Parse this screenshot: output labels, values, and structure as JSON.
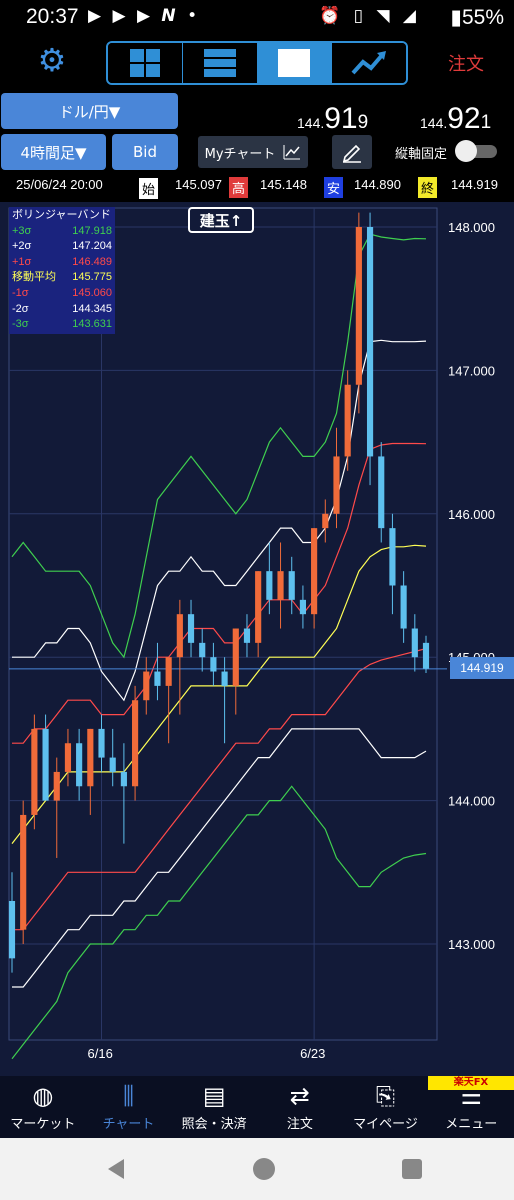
{
  "status_bar": {
    "time": "20:37",
    "battery": "55%"
  },
  "toolbar": {
    "settings_icon": "gear-icon",
    "layouts": [
      "quad-layout",
      "list-layout",
      "single-layout",
      "trend-layout"
    ],
    "active_layout": 2,
    "order_label": "注文"
  },
  "controls": {
    "pair": "ドル/円▼",
    "timeframe": "4時間足▼",
    "side": "Bid",
    "mychart_label": "Myチャート",
    "axis_lock_label": "縦軸固定",
    "axis_lock_on": false
  },
  "quotes": {
    "bid": {
      "prefix": "144.",
      "big": "91",
      "suffix": "9"
    },
    "ask": {
      "prefix": "144.",
      "big": "92",
      "suffix": "1"
    }
  },
  "ohlc": {
    "datetime": "25/06/24 20:00",
    "open_label": "始",
    "open": "145.097",
    "high_label": "高",
    "high": "145.148",
    "low_label": "安",
    "low": "144.890",
    "close_label": "終",
    "close": "144.919",
    "colors": {
      "open": "#000000",
      "high": "#e03b3b",
      "low": "#1f3fe0",
      "close": "#f2ea2a"
    }
  },
  "bollinger": {
    "title": "ボリンジャーバンド",
    "rows": [
      {
        "label": "+3σ",
        "value": "147.918",
        "color": "#3fcf4f"
      },
      {
        "label": "+2σ",
        "value": "147.204",
        "color": "#ffffff"
      },
      {
        "label": "+1σ",
        "value": "146.489",
        "color": "#ff4a4a"
      },
      {
        "label": "移動平均",
        "value": "145.775",
        "color": "#ffff55"
      },
      {
        "label": "-1σ",
        "value": "145.060",
        "color": "#ff4a4a"
      },
      {
        "label": "-2σ",
        "value": "144.345",
        "color": "#ffffff"
      },
      {
        "label": "-3σ",
        "value": "143.631",
        "color": "#3fcf4f"
      }
    ]
  },
  "position_button": "建玉↑",
  "chart_data": {
    "type": "candlestick",
    "y_ticks": [
      "148.000",
      "147.000",
      "146.000",
      "145.000",
      "144.000",
      "143.000"
    ],
    "ylim": [
      142.5,
      148.1
    ],
    "x_ticks": [
      "6/16",
      "6/23"
    ],
    "current_price": "144.919",
    "candles": [
      {
        "o": 143.3,
        "h": 143.5,
        "l": 142.8,
        "c": 142.9
      },
      {
        "o": 143.1,
        "h": 144.0,
        "l": 143.0,
        "c": 143.9
      },
      {
        "o": 143.9,
        "h": 144.6,
        "l": 143.8,
        "c": 144.5
      },
      {
        "o": 144.5,
        "h": 144.6,
        "l": 144.0,
        "c": 144.0
      },
      {
        "o": 144.0,
        "h": 144.3,
        "l": 143.6,
        "c": 144.2
      },
      {
        "o": 144.2,
        "h": 144.5,
        "l": 144.1,
        "c": 144.4
      },
      {
        "o": 144.4,
        "h": 144.5,
        "l": 144.0,
        "c": 144.1
      },
      {
        "o": 144.1,
        "h": 144.5,
        "l": 143.9,
        "c": 144.5
      },
      {
        "o": 144.5,
        "h": 144.6,
        "l": 144.2,
        "c": 144.3
      },
      {
        "o": 144.3,
        "h": 144.5,
        "l": 144.1,
        "c": 144.2
      },
      {
        "o": 144.2,
        "h": 144.4,
        "l": 143.7,
        "c": 144.1
      },
      {
        "o": 144.1,
        "h": 144.8,
        "l": 144.0,
        "c": 144.7
      },
      {
        "o": 144.7,
        "h": 145.0,
        "l": 144.6,
        "c": 144.9
      },
      {
        "o": 144.9,
        "h": 145.1,
        "l": 144.7,
        "c": 144.8
      },
      {
        "o": 144.8,
        "h": 145.0,
        "l": 144.4,
        "c": 145.0
      },
      {
        "o": 145.0,
        "h": 145.4,
        "l": 144.6,
        "c": 145.3
      },
      {
        "o": 145.3,
        "h": 145.4,
        "l": 145.0,
        "c": 145.1
      },
      {
        "o": 145.1,
        "h": 145.2,
        "l": 144.9,
        "c": 145.0
      },
      {
        "o": 145.0,
        "h": 145.1,
        "l": 144.8,
        "c": 144.9
      },
      {
        "o": 144.9,
        "h": 145.0,
        "l": 144.4,
        "c": 144.8
      },
      {
        "o": 144.8,
        "h": 145.2,
        "l": 144.6,
        "c": 145.2
      },
      {
        "o": 145.2,
        "h": 145.3,
        "l": 145.0,
        "c": 145.1
      },
      {
        "o": 145.1,
        "h": 145.6,
        "l": 145.0,
        "c": 145.6
      },
      {
        "o": 145.6,
        "h": 145.8,
        "l": 145.3,
        "c": 145.4
      },
      {
        "o": 145.4,
        "h": 145.8,
        "l": 145.2,
        "c": 145.6
      },
      {
        "o": 145.6,
        "h": 145.7,
        "l": 145.3,
        "c": 145.4
      },
      {
        "o": 145.4,
        "h": 145.5,
        "l": 145.2,
        "c": 145.3
      },
      {
        "o": 145.3,
        "h": 145.9,
        "l": 145.2,
        "c": 145.9
      },
      {
        "o": 145.9,
        "h": 146.1,
        "l": 145.8,
        "c": 146.0
      },
      {
        "o": 146.0,
        "h": 146.6,
        "l": 145.9,
        "c": 146.4
      },
      {
        "o": 146.4,
        "h": 147.0,
        "l": 146.3,
        "c": 146.9
      },
      {
        "o": 146.9,
        "h": 148.1,
        "l": 146.7,
        "c": 148.0
      },
      {
        "o": 148.0,
        "h": 148.1,
        "l": 146.2,
        "c": 146.4
      },
      {
        "o": 146.4,
        "h": 146.5,
        "l": 145.8,
        "c": 145.9
      },
      {
        "o": 145.9,
        "h": 146.0,
        "l": 145.3,
        "c": 145.5
      },
      {
        "o": 145.5,
        "h": 145.6,
        "l": 145.1,
        "c": 145.2
      },
      {
        "o": 145.2,
        "h": 145.3,
        "l": 144.9,
        "c": 145.0
      },
      {
        "o": 145.1,
        "h": 145.15,
        "l": 144.89,
        "c": 144.92
      }
    ],
    "bands": {
      "plus3": [
        145.7,
        145.8,
        145.7,
        145.6,
        145.6,
        145.6,
        145.6,
        145.5,
        145.3,
        145.1,
        145.0,
        145.3,
        145.7,
        146.1,
        146.2,
        146.3,
        146.4,
        146.3,
        146.2,
        146.1,
        146.0,
        146.1,
        146.3,
        146.5,
        146.6,
        146.5,
        146.4,
        146.4,
        146.5,
        146.7,
        147.2,
        147.8,
        147.95,
        147.93,
        147.92,
        147.91,
        147.92,
        147.918
      ],
      "plus2": [
        145.0,
        145.0,
        145.0,
        145.1,
        145.1,
        145.2,
        145.2,
        145.1,
        144.9,
        144.8,
        144.7,
        144.9,
        145.2,
        145.5,
        145.6,
        145.6,
        145.7,
        145.6,
        145.6,
        145.5,
        145.5,
        145.6,
        145.7,
        145.8,
        145.9,
        145.9,
        145.8,
        145.8,
        145.9,
        146.1,
        146.4,
        146.9,
        147.2,
        147.21,
        147.2,
        147.2,
        147.2,
        147.204
      ],
      "plus1": [
        144.4,
        144.4,
        144.5,
        144.5,
        144.6,
        144.7,
        144.7,
        144.7,
        144.6,
        144.6,
        144.6,
        144.7,
        144.8,
        145.0,
        145.0,
        145.1,
        145.2,
        145.2,
        145.2,
        145.1,
        145.1,
        145.2,
        145.3,
        145.4,
        145.4,
        145.4,
        145.3,
        145.4,
        145.5,
        145.7,
        145.9,
        146.2,
        146.45,
        146.48,
        146.49,
        146.49,
        146.49,
        146.489
      ],
      "ma": [
        143.7,
        143.8,
        143.9,
        144.0,
        144.1,
        144.2,
        144.2,
        144.2,
        144.2,
        144.2,
        144.2,
        144.3,
        144.4,
        144.5,
        144.6,
        144.7,
        144.8,
        144.8,
        144.8,
        144.8,
        144.8,
        144.8,
        144.9,
        145.0,
        145.0,
        145.0,
        145.0,
        145.0,
        145.1,
        145.2,
        145.4,
        145.6,
        145.7,
        145.75,
        145.77,
        145.77,
        145.78,
        145.775
      ],
      "minus1": [
        143.1,
        143.1,
        143.2,
        143.3,
        143.4,
        143.5,
        143.5,
        143.5,
        143.5,
        143.5,
        143.5,
        143.5,
        143.6,
        143.7,
        143.8,
        143.9,
        144.0,
        144.1,
        144.2,
        144.3,
        144.4,
        144.4,
        144.4,
        144.5,
        144.5,
        144.6,
        144.6,
        144.6,
        144.6,
        144.7,
        144.8,
        144.9,
        144.95,
        144.98,
        145.0,
        145.02,
        145.04,
        145.06
      ],
      "minus2": [
        142.7,
        142.7,
        142.8,
        142.9,
        143.0,
        143.1,
        143.1,
        143.2,
        143.2,
        143.2,
        143.3,
        143.3,
        143.4,
        143.5,
        143.5,
        143.6,
        143.7,
        143.8,
        143.9,
        144.0,
        144.1,
        144.2,
        144.3,
        144.3,
        144.4,
        144.5,
        144.5,
        144.5,
        144.5,
        144.5,
        144.5,
        144.5,
        144.4,
        144.3,
        144.3,
        144.3,
        144.3,
        144.345
      ],
      "minus3": [
        142.2,
        142.3,
        142.4,
        142.5,
        142.6,
        142.8,
        142.9,
        143.0,
        143.0,
        143.0,
        143.1,
        143.1,
        143.2,
        143.2,
        143.3,
        143.3,
        143.4,
        143.5,
        143.6,
        143.7,
        143.8,
        143.9,
        143.9,
        144.0,
        144.0,
        144.1,
        144.0,
        143.9,
        143.8,
        143.6,
        143.5,
        143.4,
        143.4,
        143.5,
        143.55,
        143.6,
        143.62,
        143.631
      ]
    },
    "colors": {
      "up": "#f06b3a",
      "down": "#5ec0ee",
      "plus3": "#3fcf4f",
      "plus2": "#ffffff",
      "plus1": "#ff4a4a",
      "ma": "#ffff55",
      "minus1": "#ff4a4a",
      "minus2": "#ffffff",
      "minus3": "#3fcf4f"
    }
  },
  "bottom_nav": [
    {
      "label": "マーケット",
      "icon": "globe-icon",
      "active": false
    },
    {
      "label": "チャート",
      "icon": "candlestick-icon",
      "active": true
    },
    {
      "label": "照会・決済",
      "icon": "document-icon",
      "active": false
    },
    {
      "label": "注文",
      "icon": "order-icon",
      "active": false
    },
    {
      "label": "マイページ",
      "icon": "bookmark-icon",
      "active": false
    },
    {
      "label": "メニュー",
      "icon": "menu-icon",
      "active": false
    }
  ],
  "brand": "楽天FX"
}
